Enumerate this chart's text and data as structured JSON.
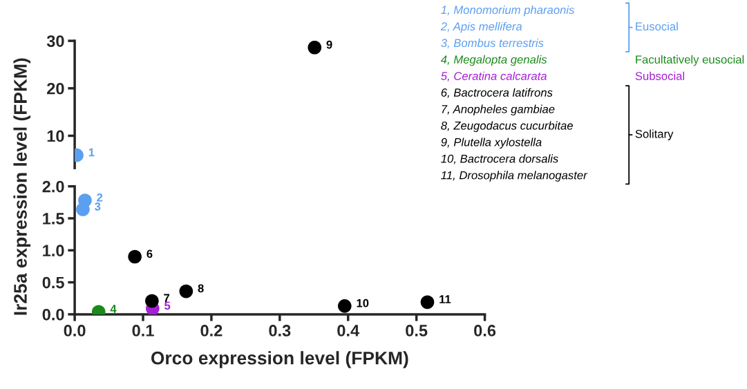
{
  "chart_data": [
    {
      "type": "scatter",
      "ylim": [
        3.2,
        30
      ],
      "yticks": [
        10,
        20,
        30
      ],
      "xlim": [
        0,
        0.6
      ],
      "tick_labels": "y",
      "marker": "circle",
      "grid": false,
      "series": [
        {
          "name": "1, Monomorium pharaonis",
          "color": "#5b9ff0",
          "x": [
            0.003
          ],
          "values": [
            5.9
          ]
        },
        {
          "name": "2, Apis mellifera",
          "color": "#5b9ff0"
        },
        {
          "name": "3, Bombus terrestris",
          "color": "#5b9ff0"
        },
        {
          "name": "4, Megalopta genalis",
          "color": "#1a8a1a"
        },
        {
          "name": "5, Ceratina calcarata",
          "color": "#a51fd6"
        },
        {
          "name": "6, Bactrocera latifrons",
          "color": "#000000"
        },
        {
          "name": "7, Anopheles gambiae",
          "color": "#000000"
        },
        {
          "name": "8, Zeugodacus cucurbitae",
          "color": "#000000"
        },
        {
          "name": "9, Plutella xylostella",
          "color": "#000000",
          "x": [
            0.351
          ],
          "values": [
            28.6
          ]
        },
        {
          "name": "10, Bactrocera dorsalis",
          "color": "#000000"
        },
        {
          "name": "11, Drosophila melanogaster",
          "color": "#000000"
        }
      ],
      "annotations": [
        {
          "text": "1",
          "x": 0.003,
          "y": 5.9
        },
        {
          "text": "9",
          "x": 0.351,
          "y": 28.6
        },
        "Eusocial",
        "Facultatively eusocial",
        "Subsocial",
        "Solitary"
      ]
    },
    {
      "type": "scatter",
      "ylim": [
        0,
        2
      ],
      "yticks": [
        {
          "value": 0,
          "label": "0.0"
        },
        0.5,
        {
          "value": 1,
          "label": "1.0"
        },
        1.5,
        {
          "value": 2,
          "label": "2.0"
        }
      ],
      "xlim": [
        0,
        0.6
      ],
      "xticks": [
        {
          "value": 0,
          "label": "0.0"
        },
        0.1,
        0.2,
        0.3,
        0.4,
        0.5,
        0.6
      ],
      "marker": "circle",
      "grid": false,
      "xlabel": "Orco expression level (FPKM)",
      "ylabel": "Ir25a expression level (FPKM)",
      "series": [
        {
          "color": "#5b9ff0",
          "x": [
            0.015
          ],
          "values": [
            1.78
          ]
        },
        {
          "color": "#5b9ff0",
          "x": [
            0.012
          ],
          "values": [
            1.64
          ]
        },
        {
          "color": "#1a8a1a",
          "x": [
            0.035
          ],
          "values": [
            0.04
          ]
        },
        {
          "color": "#a51fd6",
          "x": [
            0.114
          ],
          "values": [
            0.09
          ]
        },
        {
          "color": "#000000",
          "x": [
            0.088
          ],
          "values": [
            0.9
          ]
        },
        {
          "color": "#000000",
          "x": [
            0.113
          ],
          "values": [
            0.21
          ]
        },
        {
          "color": "#000000",
          "x": [
            0.163
          ],
          "values": [
            0.36
          ]
        },
        {
          "color": "#000000",
          "x": [
            0.395
          ],
          "values": [
            0.13
          ]
        },
        {
          "color": "#000000",
          "x": [
            0.516
          ],
          "values": [
            0.19
          ]
        }
      ],
      "annotations": [
        {
          "text": "2",
          "x": 0.015,
          "y": 1.78
        },
        {
          "text": "3",
          "x": 0.012,
          "y": 1.64
        },
        {
          "text": "4",
          "x": 0.035,
          "y": 0.04
        },
        {
          "text": "5",
          "x": 0.114,
          "y": 0.09
        },
        {
          "text": "6",
          "x": 0.088,
          "y": 0.9
        },
        {
          "text": "7",
          "x": 0.113,
          "y": 0.21
        },
        {
          "text": "8",
          "x": 0.163,
          "y": 0.36
        },
        {
          "text": "10",
          "x": 0.395,
          "y": 0.13
        },
        {
          "text": "11",
          "x": 0.516,
          "y": 0.19
        }
      ]
    }
  ]
}
